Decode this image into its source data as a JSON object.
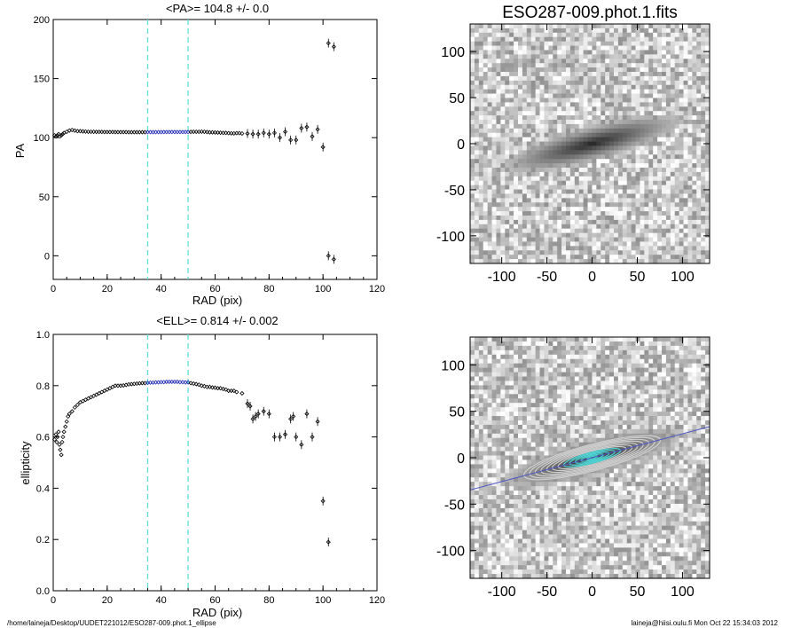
{
  "chart_data": [
    {
      "type": "scatter",
      "title": "<PA>= 104.8 +/-   0.0",
      "xlabel": "RAD (pix)",
      "ylabel": "PA",
      "xlim": [
        0,
        120
      ],
      "ylim": [
        -20,
        200
      ],
      "xticks": [
        0,
        20,
        40,
        60,
        80,
        100,
        120
      ],
      "yticks": [
        0,
        50,
        100,
        150,
        200
      ],
      "vlines": [
        35,
        50
      ],
      "fit_range": [
        35,
        50
      ],
      "points": [
        [
          0.5,
          102
        ],
        [
          1,
          101
        ],
        [
          1.5,
          102
        ],
        [
          2,
          103
        ],
        [
          2.5,
          101
        ],
        [
          3,
          102
        ],
        [
          3.5,
          103
        ],
        [
          4,
          104
        ],
        [
          5,
          105
        ],
        [
          6,
          106
        ],
        [
          7,
          106.5
        ],
        [
          8,
          106
        ],
        [
          9,
          105.5
        ],
        [
          10,
          105.5
        ],
        [
          11,
          105.3
        ],
        [
          12,
          105.2
        ],
        [
          13,
          105
        ],
        [
          14,
          105
        ],
        [
          15,
          105
        ],
        [
          16,
          104.9
        ],
        [
          17,
          104.9
        ],
        [
          18,
          104.9
        ],
        [
          19,
          104.8
        ],
        [
          20,
          104.8
        ],
        [
          21,
          104.8
        ],
        [
          22,
          104.8
        ],
        [
          23,
          104.7
        ],
        [
          24,
          104.7
        ],
        [
          25,
          104.7
        ],
        [
          26,
          104.7
        ],
        [
          27,
          104.7
        ],
        [
          28,
          104.6
        ],
        [
          29,
          104.6
        ],
        [
          30,
          104.6
        ],
        [
          31,
          104.6
        ],
        [
          32,
          104.6
        ],
        [
          33,
          104.6
        ],
        [
          34,
          104.6
        ],
        [
          35,
          104.7
        ],
        [
          36,
          104.7
        ],
        [
          37,
          104.7
        ],
        [
          38,
          104.7
        ],
        [
          39,
          104.7
        ],
        [
          40,
          104.7
        ],
        [
          41,
          104.8
        ],
        [
          42,
          104.8
        ],
        [
          43,
          104.8
        ],
        [
          44,
          104.8
        ],
        [
          45,
          104.8
        ],
        [
          46,
          104.8
        ],
        [
          47,
          104.8
        ],
        [
          48,
          104.8
        ],
        [
          49,
          104.8
        ],
        [
          50,
          104.8
        ],
        [
          51,
          104.9
        ],
        [
          52,
          105
        ],
        [
          53,
          105
        ],
        [
          54,
          105
        ],
        [
          55,
          105.1
        ],
        [
          56,
          105
        ],
        [
          57,
          104.8
        ],
        [
          58,
          104.5
        ],
        [
          59,
          104.5
        ],
        [
          60,
          104.4
        ],
        [
          61,
          104.3
        ],
        [
          62,
          104.2
        ],
        [
          63,
          104
        ],
        [
          64,
          104
        ],
        [
          65,
          103.8
        ],
        [
          66,
          103.7
        ],
        [
          67,
          103.6
        ],
        [
          68,
          103.8
        ],
        [
          69,
          103.8
        ],
        [
          70,
          103.5
        ],
        [
          72,
          103.5
        ],
        [
          74,
          103
        ],
        [
          76,
          103
        ],
        [
          78,
          104
        ],
        [
          80,
          103
        ],
        [
          82,
          104
        ],
        [
          84,
          100
        ],
        [
          86,
          105
        ],
        [
          88,
          98
        ],
        [
          90,
          98
        ],
        [
          92,
          108
        ],
        [
          94,
          109
        ],
        [
          96,
          101
        ],
        [
          98,
          107
        ],
        [
          100,
          92
        ],
        [
          102,
          180
        ],
        [
          104,
          177
        ],
        [
          102,
          0
        ],
        [
          104,
          -3
        ]
      ]
    },
    {
      "type": "scatter",
      "title": "<ELL>= 0.814 +/-  0.002",
      "xlabel": "RAD (pix)",
      "ylabel": "ellipticity",
      "xlim": [
        0,
        120
      ],
      "ylim": [
        0.0,
        1.0
      ],
      "xticks": [
        0,
        20,
        40,
        60,
        80,
        100,
        120
      ],
      "yticks": [
        "0.0",
        "0.2",
        "0.4",
        "0.6",
        "0.8",
        "1.0"
      ],
      "vlines": [
        35,
        50
      ],
      "fit_range": [
        35,
        50
      ],
      "points": [
        [
          0.5,
          0.59
        ],
        [
          1,
          0.61
        ],
        [
          1.3,
          0.58
        ],
        [
          1.6,
          0.6
        ],
        [
          2,
          0.62
        ],
        [
          2.3,
          0.57
        ],
        [
          2.6,
          0.55
        ],
        [
          3,
          0.53
        ],
        [
          3.3,
          0.58
        ],
        [
          3.6,
          0.6
        ],
        [
          4,
          0.62
        ],
        [
          4.5,
          0.64
        ],
        [
          5,
          0.66
        ],
        [
          5.5,
          0.68
        ],
        [
          6,
          0.69
        ],
        [
          7,
          0.7
        ],
        [
          8,
          0.715
        ],
        [
          9,
          0.725
        ],
        [
          10,
          0.735
        ],
        [
          11,
          0.74
        ],
        [
          12,
          0.745
        ],
        [
          13,
          0.75
        ],
        [
          14,
          0.755
        ],
        [
          15,
          0.76
        ],
        [
          16,
          0.765
        ],
        [
          17,
          0.77
        ],
        [
          18,
          0.775
        ],
        [
          19,
          0.78
        ],
        [
          20,
          0.785
        ],
        [
          21,
          0.79
        ],
        [
          22,
          0.795
        ],
        [
          23,
          0.8
        ],
        [
          24,
          0.8
        ],
        [
          25,
          0.8
        ],
        [
          26,
          0.801
        ],
        [
          27,
          0.803
        ],
        [
          28,
          0.805
        ],
        [
          29,
          0.806
        ],
        [
          30,
          0.807
        ],
        [
          31,
          0.808
        ],
        [
          32,
          0.809
        ],
        [
          33,
          0.81
        ],
        [
          34,
          0.81
        ],
        [
          35,
          0.811
        ],
        [
          36,
          0.812
        ],
        [
          37,
          0.812
        ],
        [
          38,
          0.813
        ],
        [
          39,
          0.813
        ],
        [
          40,
          0.814
        ],
        [
          41,
          0.814
        ],
        [
          42,
          0.815
        ],
        [
          43,
          0.815
        ],
        [
          44,
          0.815
        ],
        [
          45,
          0.815
        ],
        [
          46,
          0.815
        ],
        [
          47,
          0.814
        ],
        [
          48,
          0.814
        ],
        [
          49,
          0.813
        ],
        [
          50,
          0.813
        ],
        [
          51,
          0.81
        ],
        [
          52,
          0.808
        ],
        [
          53,
          0.806
        ],
        [
          54,
          0.804
        ],
        [
          55,
          0.8
        ],
        [
          56,
          0.798
        ],
        [
          57,
          0.795
        ],
        [
          58,
          0.795
        ],
        [
          59,
          0.793
        ],
        [
          60,
          0.792
        ],
        [
          61,
          0.79
        ],
        [
          62,
          0.79
        ],
        [
          63,
          0.787
        ],
        [
          64,
          0.785
        ],
        [
          65,
          0.78
        ],
        [
          66,
          0.78
        ],
        [
          67,
          0.78
        ],
        [
          68,
          0.775
        ],
        [
          70,
          0.77
        ],
        [
          72,
          0.73
        ],
        [
          73,
          0.72
        ],
        [
          74,
          0.67
        ],
        [
          75,
          0.68
        ],
        [
          76,
          0.69
        ],
        [
          78,
          0.7
        ],
        [
          80,
          0.69
        ],
        [
          82,
          0.6
        ],
        [
          84,
          0.6
        ],
        [
          86,
          0.61
        ],
        [
          88,
          0.67
        ],
        [
          89,
          0.68
        ],
        [
          90,
          0.6
        ],
        [
          92,
          0.57
        ],
        [
          94,
          0.69
        ],
        [
          96,
          0.6
        ],
        [
          98,
          0.66
        ],
        [
          100,
          0.35
        ],
        [
          102,
          0.19
        ]
      ]
    },
    {
      "type": "heatmap",
      "title": "ESO287-009.phot.1.fits",
      "xlim": [
        -135,
        130
      ],
      "ylim": [
        -130,
        130
      ],
      "xticks": [
        -100,
        -50,
        0,
        50,
        100
      ],
      "yticks": [
        -100,
        -50,
        0,
        50,
        100
      ],
      "galaxy_pa_deg": 104.8,
      "galaxy_ellipticity": 0.814
    },
    {
      "type": "heatmap",
      "title": "",
      "xlim": [
        -135,
        130
      ],
      "ylim": [
        -130,
        130
      ],
      "xticks": [
        -100,
        -50,
        0,
        50,
        100
      ],
      "yticks": [
        -100,
        -50,
        0,
        50,
        100
      ],
      "galaxy_pa_deg": 104.8,
      "galaxy_ellipticity": 0.814,
      "ellipse_color": "#4fd7d7",
      "line_color": "#4a56c8"
    }
  ],
  "colors": {
    "fit_points": "#1f2ab5",
    "vlines": "#5fe0d8",
    "data": "#000000"
  },
  "footer": {
    "left": "/home/laineja/Desktop/UUDET221012/ESO287-009.phot.1_ellipse",
    "right": "laineja@hiisi.oulu.fi  Mon Oct 22 15:34:03 2012"
  }
}
